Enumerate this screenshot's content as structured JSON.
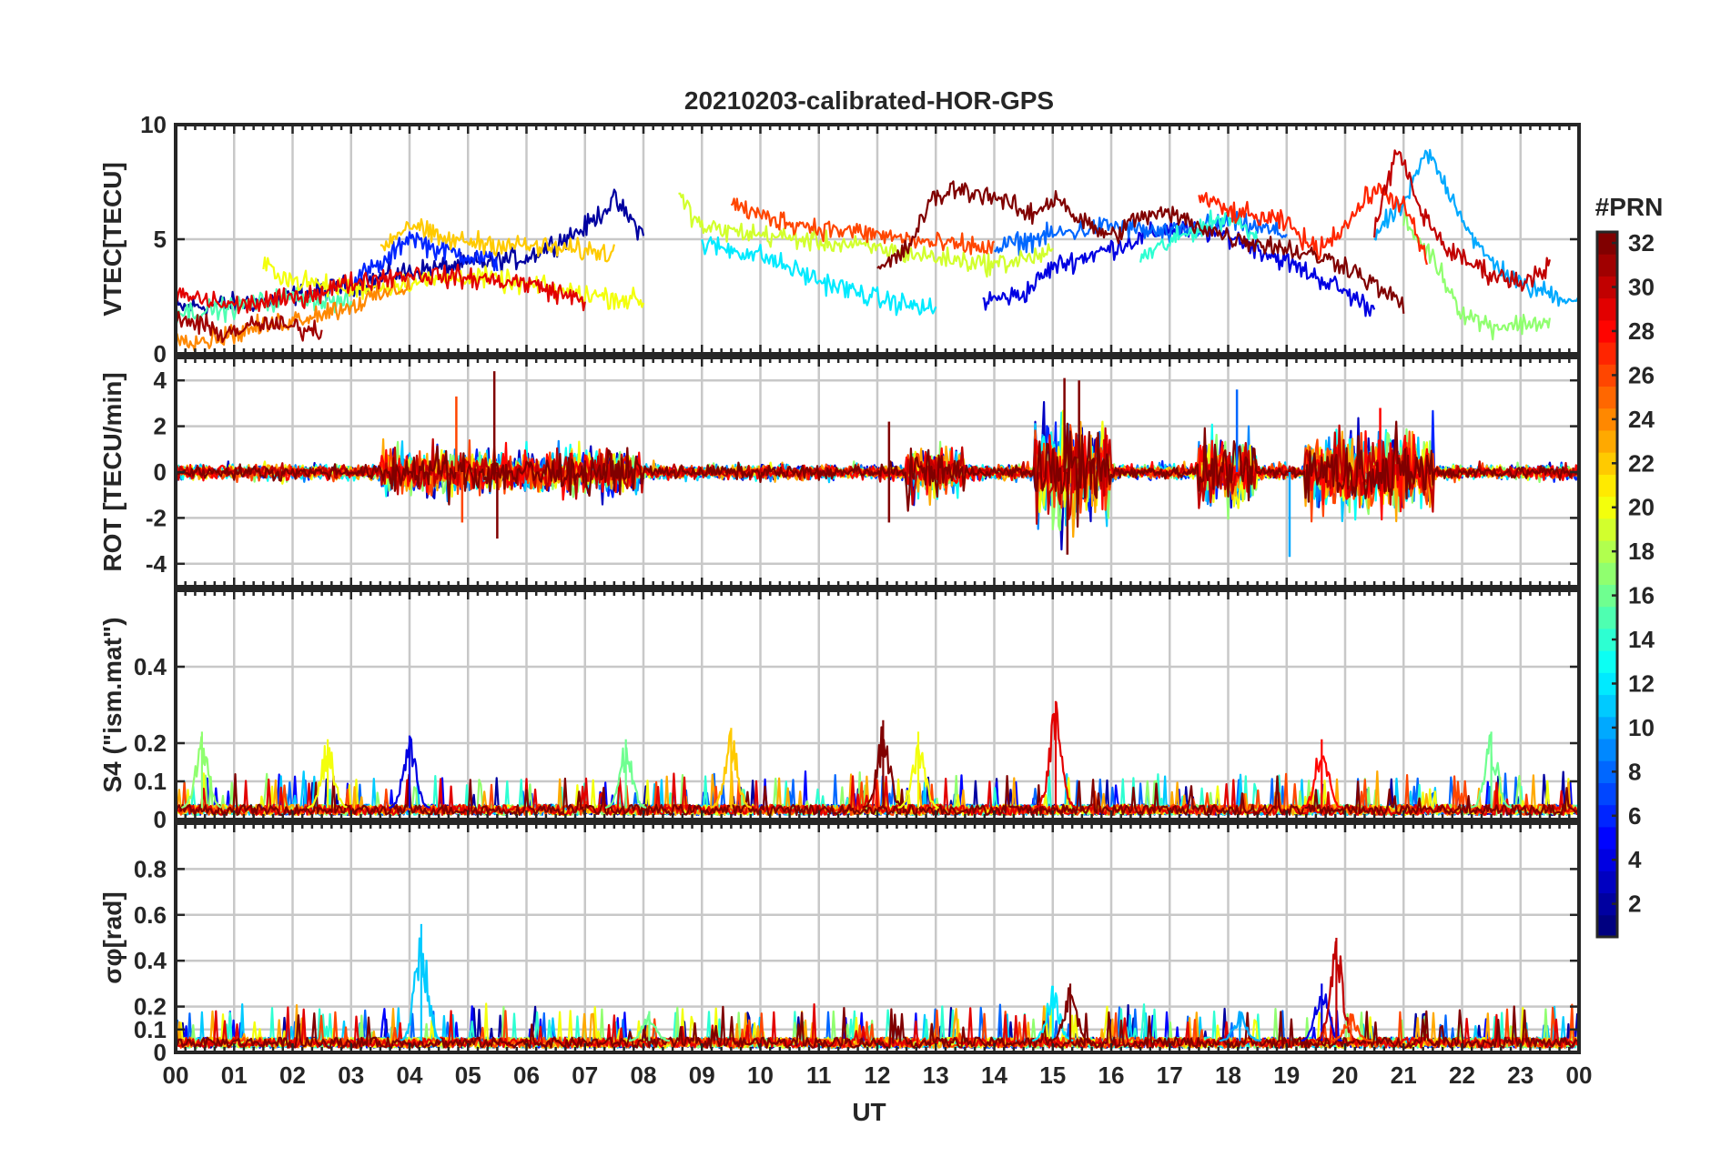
{
  "chart_data": {
    "type": "line",
    "title": "20210203-calibrated-HOR-GPS",
    "xlabel": "UT",
    "x_tick_labels": [
      "00",
      "01",
      "02",
      "03",
      "04",
      "05",
      "06",
      "07",
      "08",
      "09",
      "10",
      "11",
      "12",
      "13",
      "14",
      "15",
      "16",
      "17",
      "18",
      "19",
      "20",
      "21",
      "22",
      "23",
      "00"
    ],
    "x_range_hours": [
      0,
      24
    ],
    "colorbar": {
      "title": "#PRN",
      "range": [
        1,
        32
      ],
      "tick_labels": [
        "2",
        "4",
        "6",
        "8",
        "10",
        "12",
        "14",
        "16",
        "18",
        "20",
        "22",
        "24",
        "26",
        "28",
        "30",
        "32"
      ],
      "colormap": "jet"
    },
    "panels": [
      {
        "id": "vtec",
        "ylabel": "VTEC[TECU]",
        "ylim": [
          0,
          10
        ],
        "yticks": [
          0,
          5,
          10
        ],
        "ytick_labels": [
          "0",
          "5",
          "10"
        ],
        "grid": true,
        "series": [
          {
            "prn": 2,
            "points": [
              [
                0.0,
                2.0
              ],
              [
                1.5,
                2.3
              ],
              [
                3.0,
                3.0
              ],
              [
                4.0,
                3.6
              ],
              [
                5.0,
                3.9
              ],
              [
                6.0,
                4.2
              ],
              [
                7.0,
                5.5
              ],
              [
                7.5,
                6.7
              ],
              [
                8.0,
                5.2
              ]
            ]
          },
          {
            "prn": 4,
            "points": [
              [
                13.8,
                2.3
              ],
              [
                14.5,
                2.6
              ],
              [
                15.0,
                3.8
              ],
              [
                16.0,
                4.6
              ],
              [
                17.0,
                5.5
              ],
              [
                18.0,
                5.2
              ],
              [
                19.0,
                4.0
              ],
              [
                19.8,
                3.0
              ],
              [
                20.5,
                1.9
              ]
            ]
          },
          {
            "prn": 6,
            "points": [
              [
                3.0,
                3.2
              ],
              [
                3.6,
                4.0
              ],
              [
                4.0,
                5.2
              ],
              [
                4.4,
                4.6
              ],
              [
                5.0,
                4.3
              ],
              [
                5.5,
                4.0
              ]
            ]
          },
          {
            "prn": 8,
            "points": [
              [
                14.0,
                4.6
              ],
              [
                15.0,
                5.2
              ],
              [
                16.0,
                5.6
              ],
              [
                17.0,
                5.2
              ],
              [
                18.0,
                5.8
              ],
              [
                19.0,
                5.2
              ]
            ]
          },
          {
            "prn": 10,
            "points": [
              [
                20.5,
                5.2
              ],
              [
                21.0,
                6.5
              ],
              [
                21.4,
                8.8
              ],
              [
                21.8,
                7.0
              ],
              [
                22.3,
                4.5
              ],
              [
                23.0,
                3.0
              ],
              [
                24.0,
                2.3
              ]
            ]
          },
          {
            "prn": 12,
            "points": [
              [
                9.0,
                4.8
              ],
              [
                10.0,
                4.3
              ],
              [
                11.0,
                3.2
              ],
              [
                12.0,
                2.4
              ],
              [
                13.0,
                1.9
              ]
            ]
          },
          {
            "prn": 14,
            "points": [
              [
                16.5,
                4.2
              ],
              [
                17.5,
                5.5
              ],
              [
                18.0,
                6.0
              ],
              [
                18.5,
                5.1
              ]
            ]
          },
          {
            "prn": 15,
            "points": [
              [
                0.0,
                1.8
              ],
              [
                1.0,
                2.0
              ],
              [
                2.0,
                2.5
              ],
              [
                3.0,
                2.2
              ]
            ]
          },
          {
            "prn": 17,
            "points": [
              [
                21.0,
                5.8
              ],
              [
                21.5,
                4.2
              ],
              [
                22.0,
                1.8
              ],
              [
                22.5,
                1.2
              ],
              [
                23.5,
                1.4
              ]
            ]
          },
          {
            "prn": 19,
            "points": [
              [
                8.6,
                6.9
              ],
              [
                9.0,
                5.5
              ],
              [
                10.0,
                5.2
              ],
              [
                11.0,
                4.9
              ],
              [
                12.0,
                4.6
              ],
              [
                13.0,
                4.2
              ],
              [
                14.0,
                3.9
              ],
              [
                15.0,
                4.4
              ]
            ]
          },
          {
            "prn": 20,
            "points": [
              [
                1.5,
                3.9
              ],
              [
                2.0,
                3.2
              ],
              [
                3.0,
                2.8
              ],
              [
                4.0,
                3.1
              ],
              [
                5.0,
                3.4
              ],
              [
                6.0,
                3.0
              ],
              [
                7.0,
                2.6
              ],
              [
                8.0,
                2.3
              ]
            ]
          },
          {
            "prn": 22,
            "points": [
              [
                3.5,
                4.6
              ],
              [
                4.0,
                5.7
              ],
              [
                4.5,
                5.0
              ],
              [
                5.5,
                4.8
              ],
              [
                6.5,
                4.6
              ],
              [
                7.5,
                4.4
              ]
            ]
          },
          {
            "prn": 24,
            "points": [
              [
                0.0,
                0.8
              ],
              [
                0.5,
                0.6
              ],
              [
                1.0,
                0.9
              ],
              [
                2.0,
                1.5
              ],
              [
                3.0,
                2.1
              ],
              [
                4.0,
                3.0
              ]
            ]
          },
          {
            "prn": 26,
            "points": [
              [
                9.5,
                6.6
              ],
              [
                10.0,
                6.0
              ],
              [
                11.0,
                5.5
              ],
              [
                12.0,
                5.2
              ],
              [
                13.0,
                4.8
              ],
              [
                14.0,
                4.6
              ]
            ]
          },
          {
            "prn": 27,
            "points": [
              [
                17.5,
                6.9
              ],
              [
                18.0,
                6.2
              ],
              [
                19.0,
                5.7
              ],
              [
                19.5,
                4.5
              ],
              [
                20.0,
                5.6
              ],
              [
                20.5,
                7.2
              ],
              [
                21.0,
                6.5
              ],
              [
                21.4,
                4.0
              ]
            ]
          },
          {
            "prn": 29,
            "points": [
              [
                0.0,
                2.6
              ],
              [
                1.0,
                2.1
              ],
              [
                2.0,
                2.4
              ],
              [
                3.0,
                3.1
              ],
              [
                4.0,
                3.5
              ],
              [
                5.0,
                3.3
              ],
              [
                6.0,
                3.1
              ],
              [
                7.0,
                2.3
              ]
            ]
          },
          {
            "prn": 30,
            "points": [
              [
                20.5,
                5.5
              ],
              [
                20.9,
                8.9
              ],
              [
                21.3,
                6.2
              ],
              [
                21.8,
                4.4
              ],
              [
                22.5,
                3.5
              ],
              [
                23.0,
                3.1
              ],
              [
                23.5,
                3.9
              ]
            ]
          },
          {
            "prn": 32,
            "points": [
              [
                12.0,
                3.6
              ],
              [
                12.5,
                4.5
              ],
              [
                12.9,
                6.6
              ],
              [
                13.3,
                7.2
              ],
              [
                14.0,
                6.9
              ],
              [
                14.6,
                6.0
              ],
              [
                15.1,
                6.9
              ],
              [
                15.4,
                5.9
              ],
              [
                16.0,
                5.1
              ],
              [
                16.5,
                6.0
              ],
              [
                17.0,
                6.1
              ],
              [
                18.0,
                5.1
              ],
              [
                19.0,
                4.6
              ],
              [
                20.0,
                3.9
              ],
              [
                21.0,
                2.1
              ]
            ]
          },
          {
            "prn": 31,
            "points": [
              [
                0.0,
                1.6
              ],
              [
                0.8,
                0.9
              ],
              [
                1.5,
                1.3
              ],
              [
                2.5,
                1.0
              ]
            ]
          }
        ]
      },
      {
        "id": "rot",
        "ylabel": "ROT [TECU/min]",
        "ylim": [
          -5,
          5
        ],
        "yticks": [
          -4,
          -2,
          0,
          2,
          4
        ],
        "ytick_labels": [
          "-4",
          "-2",
          "0",
          "2",
          "4"
        ],
        "grid": true,
        "activity_windows": [
          {
            "hours": [
              0.0,
              24.0
            ],
            "amplitude": 0.3
          },
          {
            "hours": [
              3.5,
              8.0
            ],
            "amplitude": 0.9
          },
          {
            "hours": [
              12.5,
              13.5
            ],
            "amplitude": 1.0
          },
          {
            "hours": [
              14.7,
              16.0
            ],
            "amplitude": 2.0
          },
          {
            "hours": [
              17.5,
              18.5
            ],
            "amplitude": 1.3
          },
          {
            "hours": [
              19.3,
              21.5
            ],
            "amplitude": 1.6
          }
        ],
        "spikes": [
          {
            "hour": 4.8,
            "value": 3.3,
            "prn": 26
          },
          {
            "hour": 4.9,
            "value": -2.2,
            "prn": 26
          },
          {
            "hour": 5.45,
            "value": 4.4,
            "prn": 32
          },
          {
            "hour": 5.5,
            "value": -2.9,
            "prn": 32
          },
          {
            "hour": 12.2,
            "value": 2.2,
            "prn": 32
          },
          {
            "hour": 12.2,
            "value": -2.2,
            "prn": 32
          },
          {
            "hour": 15.2,
            "value": 4.1,
            "prn": 32
          },
          {
            "hour": 15.25,
            "value": -3.6,
            "prn": 32
          },
          {
            "hour": 15.45,
            "value": 4.0,
            "prn": 32
          },
          {
            "hour": 18.15,
            "value": 3.6,
            "prn": 8
          },
          {
            "hour": 19.05,
            "value": -3.7,
            "prn": 10
          },
          {
            "hour": 20.6,
            "value": 2.8,
            "prn": 28
          }
        ]
      },
      {
        "id": "s4",
        "ylabel": "S4 (\"ism.mat\")",
        "ylim": [
          0,
          0.6
        ],
        "yticks": [
          0,
          0.1,
          0.2,
          0.4
        ],
        "ytick_labels": [
          "0",
          "0.1",
          "0.2",
          "0.4"
        ],
        "grid": true,
        "baseline": 0.03,
        "peaks": [
          {
            "hour": 0.45,
            "value": 0.23,
            "prn": 17
          },
          {
            "hour": 2.6,
            "value": 0.21,
            "prn": 20
          },
          {
            "hour": 4.0,
            "value": 0.22,
            "prn": 4
          },
          {
            "hour": 7.7,
            "value": 0.21,
            "prn": 16
          },
          {
            "hour": 9.5,
            "value": 0.24,
            "prn": 22
          },
          {
            "hour": 12.1,
            "value": 0.26,
            "prn": 32
          },
          {
            "hour": 12.7,
            "value": 0.23,
            "prn": 20
          },
          {
            "hour": 15.05,
            "value": 0.31,
            "prn": 29
          },
          {
            "hour": 19.6,
            "value": 0.21,
            "prn": 28
          },
          {
            "hour": 22.5,
            "value": 0.23,
            "prn": 16
          }
        ]
      },
      {
        "id": "sigma_phi",
        "ylabel": "σφ[rad]",
        "ylim": [
          0,
          1.0
        ],
        "yticks": [
          0,
          0.1,
          0.2,
          0.4,
          0.6,
          0.8
        ],
        "ytick_labels": [
          "0",
          "0.1",
          "0.2",
          "0.4",
          "0.6",
          "0.8"
        ],
        "grid": true,
        "baseline": 0.05,
        "peaks": [
          {
            "hour": 4.2,
            "value": 0.56,
            "prn": 11
          },
          {
            "hour": 8.1,
            "value": 0.18,
            "prn": 16
          },
          {
            "hour": 15.0,
            "value": 0.29,
            "prn": 12
          },
          {
            "hour": 15.3,
            "value": 0.3,
            "prn": 32
          },
          {
            "hour": 18.2,
            "value": 0.18,
            "prn": 10
          },
          {
            "hour": 19.6,
            "value": 0.3,
            "prn": 4
          },
          {
            "hour": 19.85,
            "value": 0.5,
            "prn": 30
          },
          {
            "hour": 20.1,
            "value": 0.17,
            "prn": 26
          }
        ]
      }
    ]
  }
}
